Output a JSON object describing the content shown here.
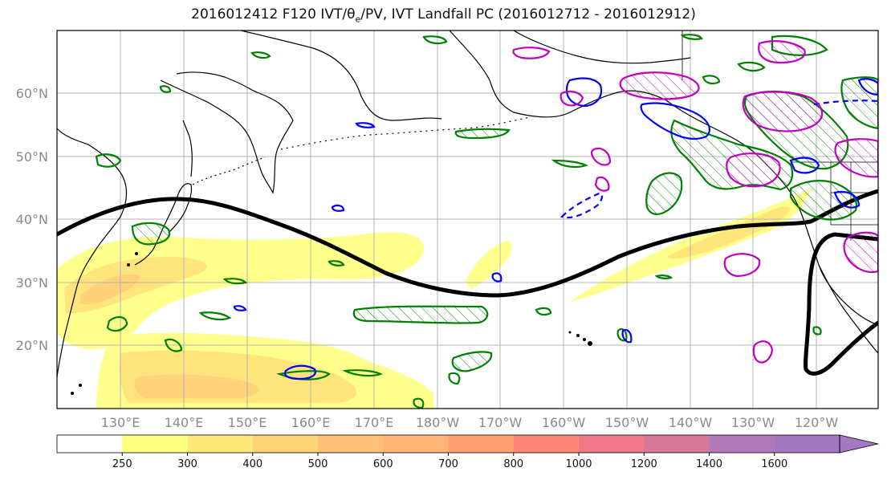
{
  "title": "2016012412 F120 IVT/θe/PV, IVT Landfall PC (2016012712 - 2016012912)",
  "title_parts": {
    "pre": "2016012412 F120 IVT/θ",
    "sub": "e",
    "post": "/PV, IVT Landfall PC (2016012712 - 2016012912)"
  },
  "map": {
    "lat_labels": [
      "60°N",
      "50°N",
      "40°N",
      "30°N",
      "20°N"
    ],
    "lon_labels": [
      "130°E",
      "140°E",
      "150°E",
      "160°E",
      "170°E",
      "180°W",
      "170°W",
      "160°W",
      "150°W",
      "140°W",
      "130°W",
      "120°W"
    ],
    "colors": {
      "coastline": "#000000",
      "landfall_pc": "#000000",
      "theta_e_contour": "#008000",
      "pv_positive": "#0000ff",
      "pv_contour_magenta": "#c000c0",
      "ivt_250": "#ffff80",
      "ivt_300": "#ffe07a",
      "ivt_400": "#ffcc78",
      "ivt_500": "#ffb070"
    }
  },
  "colorbar": {
    "ticks": [
      "250",
      "300",
      "400",
      "500",
      "600",
      "700",
      "800",
      "1000",
      "1200",
      "1400",
      "1600"
    ],
    "colors": [
      "#ffffff",
      "#ffff80",
      "#ffe878",
      "#ffd478",
      "#ffc078",
      "#ffb478",
      "#ffa070",
      "#ff8878",
      "#f07888",
      "#d87898",
      "#b07ab8",
      "#a478c0"
    ]
  }
}
